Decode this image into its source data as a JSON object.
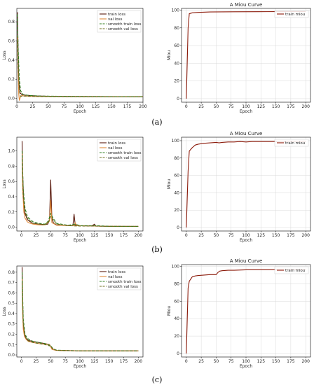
{
  "figure": {
    "panels": [
      {
        "label": "(a)",
        "loss": {
          "ylabel": "Loss",
          "xlabel": "Epoch",
          "legend": [
            "train loss",
            "val loss",
            "smooth train loss",
            "smooth val loss"
          ]
        },
        "miou": {
          "title": "A Miou Curve",
          "ylabel": "Miou",
          "xlabel": "Epoch",
          "legend": [
            "train miou"
          ]
        }
      },
      {
        "label": "(b)",
        "loss": {
          "ylabel": "Loss",
          "xlabel": "Epoch",
          "legend": [
            "train loss",
            "val loss",
            "smooth train loss",
            "smooth val loss"
          ]
        },
        "miou": {
          "title": "A Miou Curve",
          "ylabel": "Miou",
          "xlabel": "Epoch",
          "legend": [
            "train miou"
          ]
        }
      },
      {
        "label": "(c)",
        "loss": {
          "ylabel": "Loss",
          "xlabel": "Epoch",
          "legend": [
            "train loss",
            "val loss",
            "smooth train loss",
            "smooth val loss"
          ]
        },
        "miou": {
          "title": "A Miou Curve",
          "ylabel": "Miou",
          "xlabel": "Epoch",
          "legend": [
            "train miou"
          ]
        }
      }
    ]
  },
  "chart_data": [
    {
      "type": "line",
      "xlabel": "Epoch",
      "ylabel": "Loss",
      "xlim": [
        0,
        200
      ],
      "ylim": [
        -0.04,
        0.94
      ],
      "xticks": [
        0,
        25,
        50,
        75,
        100,
        125,
        150,
        175,
        200
      ],
      "yticks": [
        0.0,
        0.2,
        0.4,
        0.6,
        0.8
      ],
      "ytick_labels": [
        "0.0",
        "0.2",
        "0.4",
        "0.6",
        "0.8"
      ],
      "legend_position": "top-right",
      "grid": false,
      "series": [
        {
          "name": "train loss",
          "color": "#5a1a0e",
          "dash": "none",
          "x": [
            1,
            2,
            3,
            5,
            8,
            12,
            20,
            30,
            50,
            80,
            120,
            160,
            200
          ],
          "y": [
            0.9,
            0.5,
            0.2,
            0.06,
            0.04,
            0.035,
            0.03,
            0.025,
            0.022,
            0.02,
            0.019,
            0.018,
            0.018
          ]
        },
        {
          "name": "val loss",
          "color": "#e08a3c",
          "dash": "none",
          "x": [
            1,
            2,
            3,
            4,
            6,
            8,
            12,
            20,
            30,
            50,
            80,
            120,
            160,
            200
          ],
          "y": [
            0.65,
            0.3,
            0.05,
            -0.02,
            0.02,
            0.03,
            0.025,
            0.022,
            0.02,
            0.019,
            0.018,
            0.017,
            0.017,
            0.016
          ]
        },
        {
          "name": "smooth train loss",
          "color": "#2e7d1e",
          "dash": "4,2",
          "x": [
            1,
            2,
            4,
            6,
            10,
            20,
            40,
            80,
            120,
            160,
            200
          ],
          "y": [
            0.88,
            0.55,
            0.2,
            0.08,
            0.04,
            0.03,
            0.024,
            0.021,
            0.019,
            0.018,
            0.018
          ]
        },
        {
          "name": "smooth val loss",
          "color": "#6b6b1a",
          "dash": "4,2",
          "x": [
            1,
            2,
            4,
            6,
            10,
            20,
            40,
            80,
            120,
            160,
            200
          ],
          "y": [
            0.6,
            0.35,
            0.08,
            0.02,
            0.025,
            0.022,
            0.02,
            0.018,
            0.017,
            0.017,
            0.016
          ]
        }
      ]
    },
    {
      "type": "line",
      "title": "A Miou Curve",
      "xlabel": "Epoch",
      "ylabel": "Miou",
      "xlim": [
        -8,
        208
      ],
      "ylim": [
        -4,
        102
      ],
      "xticks": [
        0,
        25,
        50,
        75,
        100,
        125,
        150,
        175,
        200
      ],
      "yticks": [
        0,
        20,
        40,
        60,
        80,
        100
      ],
      "legend_position": "top-right",
      "grid": true,
      "series": [
        {
          "name": "train miou",
          "color": "#8b1a0a",
          "dash": "none",
          "x": [
            0,
            3,
            5,
            10,
            20,
            40,
            80,
            120,
            160,
            200
          ],
          "y": [
            0,
            80,
            96,
            97,
            97.5,
            98,
            98.2,
            98.3,
            98.4,
            98.4
          ]
        }
      ]
    },
    {
      "type": "line",
      "xlabel": "Epoch",
      "ylabel": "Loss",
      "xlim": [
        -8,
        208
      ],
      "ylim": [
        -0.05,
        1.18
      ],
      "xticks": [
        0,
        25,
        50,
        75,
        100,
        125,
        150,
        175,
        200
      ],
      "yticks": [
        0.0,
        0.2,
        0.4,
        0.6,
        0.8,
        1.0
      ],
      "ytick_labels": [
        "0.0",
        "0.2",
        "0.4",
        "0.6",
        "0.8",
        "1.0"
      ],
      "legend_position": "top-right",
      "grid": false,
      "series": [
        {
          "name": "train loss",
          "color": "#5a1a0e",
          "dash": "none",
          "x": [
            1,
            2,
            4,
            6,
            10,
            15,
            20,
            30,
            40,
            45,
            48,
            50,
            52,
            55,
            60,
            80,
            88,
            90,
            92,
            100,
            120,
            125,
            127,
            140,
            170,
            200
          ],
          "y": [
            1.13,
            0.7,
            0.3,
            0.18,
            0.1,
            0.07,
            0.05,
            0.04,
            0.035,
            0.04,
            0.1,
            0.62,
            0.12,
            0.05,
            0.03,
            0.02,
            0.02,
            0.17,
            0.03,
            0.02,
            0.015,
            0.04,
            0.015,
            0.012,
            0.01,
            0.01
          ]
        },
        {
          "name": "val loss",
          "color": "#e08a3c",
          "dash": "none",
          "x": [
            1,
            2,
            4,
            6,
            10,
            15,
            20,
            30,
            40,
            48,
            50,
            52,
            60,
            90,
            92,
            94,
            120,
            160,
            200
          ],
          "y": [
            1.0,
            0.5,
            0.2,
            0.12,
            0.07,
            0.05,
            0.04,
            0.03,
            0.03,
            0.08,
            0.35,
            0.06,
            0.025,
            0.02,
            0.06,
            0.02,
            0.015,
            0.012,
            0.01
          ]
        },
        {
          "name": "smooth train loss",
          "color": "#2e7d1e",
          "dash": "4,2",
          "x": [
            1,
            3,
            6,
            10,
            15,
            20,
            30,
            40,
            46,
            50,
            54,
            60,
            80,
            92,
            100,
            125,
            150,
            200
          ],
          "y": [
            1.0,
            0.5,
            0.25,
            0.14,
            0.1,
            0.07,
            0.05,
            0.04,
            0.08,
            0.18,
            0.12,
            0.05,
            0.025,
            0.04,
            0.02,
            0.02,
            0.012,
            0.01
          ]
        },
        {
          "name": "smooth val loss",
          "color": "#6b6b1a",
          "dash": "4,2",
          "x": [
            1,
            3,
            6,
            10,
            15,
            20,
            30,
            40,
            46,
            50,
            54,
            60,
            80,
            100,
            125,
            150,
            200
          ],
          "y": [
            0.9,
            0.4,
            0.2,
            0.12,
            0.08,
            0.05,
            0.04,
            0.03,
            0.06,
            0.14,
            0.1,
            0.04,
            0.02,
            0.015,
            0.015,
            0.01,
            0.01
          ]
        }
      ]
    },
    {
      "type": "line",
      "title": "A Miou Curve",
      "xlabel": "Epoch",
      "ylabel": "Miou",
      "xlim": [
        -8,
        208
      ],
      "ylim": [
        -4,
        104
      ],
      "xticks": [
        0,
        25,
        50,
        75,
        100,
        125,
        150,
        175,
        200
      ],
      "yticks": [
        0,
        20,
        40,
        60,
        80,
        100
      ],
      "legend_position": "top-right",
      "grid": true,
      "series": [
        {
          "name": "train miou",
          "color": "#8b1a0a",
          "dash": "none",
          "x": [
            0,
            3,
            5,
            10,
            15,
            20,
            30,
            40,
            50,
            55,
            60,
            70,
            80,
            90,
            100,
            110,
            125,
            150,
            175,
            200
          ],
          "y": [
            0,
            65,
            88,
            92,
            95,
            96,
            97,
            97.5,
            98,
            97.5,
            98,
            98.5,
            98.5,
            99,
            98.5,
            99,
            99,
            99,
            99.2,
            99.2
          ]
        }
      ]
    },
    {
      "type": "line",
      "xlabel": "Epoch",
      "ylabel": "Loss",
      "xlim": [
        -8,
        208
      ],
      "ylim": [
        -0.02,
        0.86
      ],
      "xticks": [
        0,
        25,
        50,
        75,
        100,
        125,
        150,
        175,
        200
      ],
      "yticks": [
        0.0,
        0.1,
        0.2,
        0.3,
        0.4,
        0.5,
        0.6,
        0.7,
        0.8
      ],
      "ytick_labels": [
        "0.0",
        "0.1",
        "0.2",
        "0.3",
        "0.4",
        "0.5",
        "0.6",
        "0.7",
        "0.8"
      ],
      "legend_position": "top-right",
      "grid": false,
      "series": [
        {
          "name": "train loss",
          "color": "#5a1a0e",
          "dash": "none",
          "x": [
            1,
            2,
            3,
            5,
            8,
            12,
            20,
            30,
            40,
            48,
            52,
            56,
            60,
            80,
            100,
            150,
            200
          ],
          "y": [
            0.85,
            0.5,
            0.3,
            0.2,
            0.16,
            0.14,
            0.13,
            0.12,
            0.11,
            0.1,
            0.06,
            0.05,
            0.045,
            0.042,
            0.04,
            0.04,
            0.04
          ]
        },
        {
          "name": "val loss",
          "color": "#e08a3c",
          "dash": "none",
          "x": [
            1,
            2,
            3,
            5,
            8,
            12,
            20,
            30,
            40,
            48,
            52,
            56,
            60,
            80,
            100,
            150,
            200
          ],
          "y": [
            0.75,
            0.4,
            0.25,
            0.18,
            0.15,
            0.13,
            0.12,
            0.11,
            0.105,
            0.1,
            0.055,
            0.048,
            0.044,
            0.041,
            0.04,
            0.039,
            0.039
          ]
        },
        {
          "name": "smooth train loss",
          "color": "#2e7d1e",
          "dash": "4,2",
          "x": [
            1,
            3,
            6,
            10,
            20,
            30,
            40,
            50,
            54,
            60,
            80,
            100,
            150,
            200
          ],
          "y": [
            0.8,
            0.35,
            0.2,
            0.16,
            0.13,
            0.12,
            0.11,
            0.09,
            0.06,
            0.046,
            0.042,
            0.04,
            0.04,
            0.04
          ]
        },
        {
          "name": "smooth val loss",
          "color": "#6b6b1a",
          "dash": "4,2",
          "x": [
            1,
            3,
            6,
            10,
            20,
            30,
            40,
            50,
            54,
            60,
            80,
            100,
            150,
            200
          ],
          "y": [
            0.7,
            0.3,
            0.18,
            0.14,
            0.12,
            0.11,
            0.1,
            0.085,
            0.055,
            0.045,
            0.041,
            0.04,
            0.039,
            0.039
          ]
        }
      ]
    },
    {
      "type": "line",
      "title": "A Miou Curve",
      "xlabel": "Epoch",
      "ylabel": "Miou",
      "xlim": [
        -8,
        208
      ],
      "ylim": [
        -4,
        102
      ],
      "xticks": [
        0,
        25,
        50,
        75,
        100,
        125,
        150,
        175,
        200
      ],
      "yticks": [
        0,
        20,
        40,
        60,
        80,
        100
      ],
      "legend_position": "top-right",
      "grid": true,
      "series": [
        {
          "name": "train miou",
          "color": "#8b1a0a",
          "dash": "none",
          "x": [
            0,
            3,
            5,
            10,
            15,
            20,
            30,
            40,
            50,
            53,
            56,
            60,
            70,
            80,
            100,
            125,
            150,
            175,
            200
          ],
          "y": [
            0,
            75,
            83,
            88,
            89,
            89.5,
            90,
            90.5,
            90.5,
            93,
            94.5,
            95,
            95.5,
            95.5,
            96,
            96,
            96,
            96,
            96
          ]
        }
      ]
    }
  ]
}
